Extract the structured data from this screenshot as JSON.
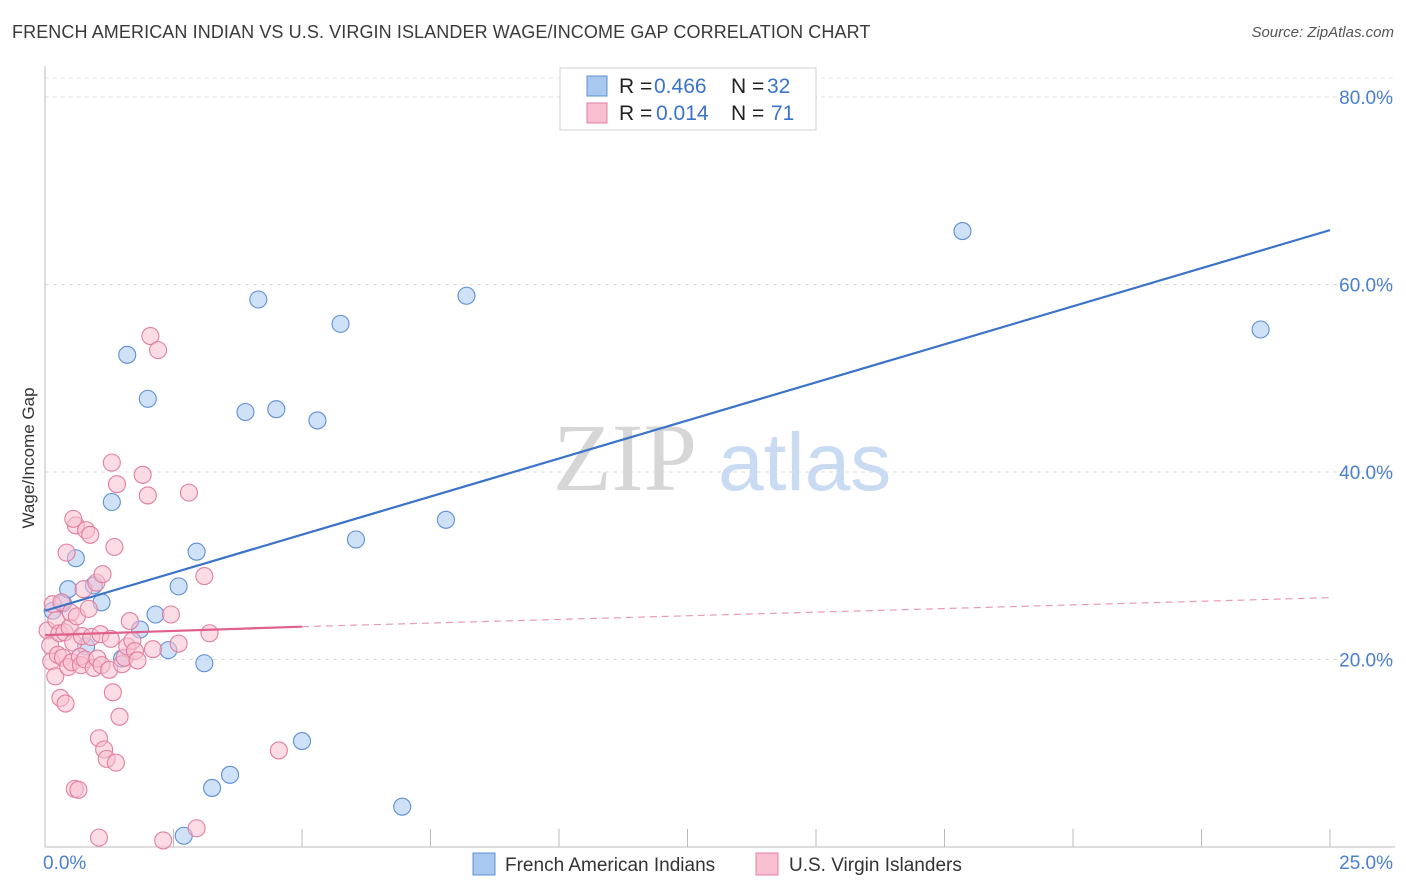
{
  "title": "FRENCH AMERICAN INDIAN VS U.S. VIRGIN ISLANDER WAGE/INCOME GAP CORRELATION CHART",
  "source": "Source: ZipAtlas.com",
  "watermark": {
    "zip": "ZIP",
    "atlas": "atlas"
  },
  "legend": {
    "rows": [
      {
        "r_label": "R = ",
        "r_value": "0.466",
        "n_label": "N = ",
        "n_value": "32",
        "color": "#a8c8f0",
        "stroke": "#5f8fd6"
      },
      {
        "r_label": "R = ",
        "r_value": "0.014",
        "n_label": "N = ",
        "n_value": "71",
        "color": "#f8bfd0",
        "stroke": "#e27fa0"
      }
    ]
  },
  "bottom_legend": [
    {
      "label": "French American Indians",
      "color": "#a8c8f0",
      "stroke": "#5f8fd6"
    },
    {
      "label": "U.S. Virgin Islanders",
      "color": "#f8bfd0",
      "stroke": "#e27fa0"
    }
  ],
  "chart_data": {
    "type": "scatter",
    "title": "FRENCH AMERICAN INDIAN VS U.S. VIRGIN ISLANDER WAGE/INCOME GAP CORRELATION CHART",
    "xlabel": "",
    "ylabel": "Wage/Income Gap",
    "xlim": [
      0,
      25
    ],
    "ylim": [
      0,
      80
    ],
    "x_tick_labels": [
      "0.0%",
      "25.0%"
    ],
    "y_ticks": [
      20,
      40,
      60,
      80
    ],
    "y_tick_labels": [
      "20.0%",
      "40.0%",
      "60.0%",
      "80.0%"
    ],
    "grid": true,
    "series": [
      {
        "name": "French American Indians",
        "color": "#5f8fd6",
        "fill": "#a8c8f0",
        "points": [
          [
            0.15,
            25.2
          ],
          [
            0.35,
            26.0
          ],
          [
            0.45,
            27.5
          ],
          [
            0.6,
            30.8
          ],
          [
            0.8,
            21.4
          ],
          [
            0.95,
            27.9
          ],
          [
            1.1,
            26.1
          ],
          [
            1.3,
            36.8
          ],
          [
            1.5,
            20.1
          ],
          [
            1.6,
            52.5
          ],
          [
            1.85,
            23.2
          ],
          [
            2.0,
            47.8
          ],
          [
            2.15,
            24.8
          ],
          [
            2.4,
            21.0
          ],
          [
            2.6,
            27.8
          ],
          [
            2.7,
            1.2
          ],
          [
            2.95,
            31.5
          ],
          [
            3.1,
            19.6
          ],
          [
            3.25,
            6.3
          ],
          [
            3.6,
            7.7
          ],
          [
            3.9,
            46.4
          ],
          [
            4.15,
            58.4
          ],
          [
            4.5,
            46.7
          ],
          [
            5.0,
            11.3
          ],
          [
            5.3,
            45.5
          ],
          [
            5.75,
            55.8
          ],
          [
            6.05,
            32.8
          ],
          [
            6.95,
            4.3
          ],
          [
            7.8,
            34.9
          ],
          [
            8.2,
            58.8
          ],
          [
            17.85,
            65.7
          ],
          [
            23.65,
            55.2
          ]
        ],
        "trend": {
          "x": [
            0,
            25
          ],
          "y": [
            25.2,
            65.8
          ],
          "style": "solid"
        }
      },
      {
        "name": "U.S. Virgin Islanders",
        "color": "#e27fa0",
        "fill": "#f8bfd0",
        "points": [
          [
            0.05,
            23.1
          ],
          [
            0.1,
            21.5
          ],
          [
            0.12,
            19.8
          ],
          [
            0.15,
            25.9
          ],
          [
            0.2,
            18.2
          ],
          [
            0.22,
            24.2
          ],
          [
            0.25,
            20.5
          ],
          [
            0.28,
            22.8
          ],
          [
            0.3,
            15.9
          ],
          [
            0.32,
            26.1
          ],
          [
            0.35,
            20.2
          ],
          [
            0.38,
            22.9
          ],
          [
            0.4,
            15.3
          ],
          [
            0.42,
            31.4
          ],
          [
            0.45,
            19.2
          ],
          [
            0.48,
            23.4
          ],
          [
            0.5,
            25.0
          ],
          [
            0.52,
            19.7
          ],
          [
            0.55,
            21.8
          ],
          [
            0.58,
            6.2
          ],
          [
            0.6,
            34.3
          ],
          [
            0.62,
            24.6
          ],
          [
            0.65,
            6.1
          ],
          [
            0.68,
            20.3
          ],
          [
            0.7,
            19.4
          ],
          [
            0.72,
            22.5
          ],
          [
            0.75,
            27.5
          ],
          [
            0.78,
            20.0
          ],
          [
            0.8,
            33.8
          ],
          [
            0.85,
            25.4
          ],
          [
            0.88,
            33.3
          ],
          [
            0.9,
            22.4
          ],
          [
            0.95,
            19.1
          ],
          [
            1.0,
            28.2
          ],
          [
            1.02,
            20.1
          ],
          [
            1.05,
            11.6
          ],
          [
            1.08,
            22.7
          ],
          [
            1.1,
            19.4
          ],
          [
            1.12,
            29.1
          ],
          [
            1.15,
            10.4
          ],
          [
            1.2,
            9.4
          ],
          [
            1.25,
            18.9
          ],
          [
            1.28,
            22.2
          ],
          [
            1.3,
            41.0
          ],
          [
            1.32,
            16.5
          ],
          [
            1.35,
            32.0
          ],
          [
            1.38,
            9.0
          ],
          [
            1.4,
            38.7
          ],
          [
            1.45,
            13.9
          ],
          [
            1.5,
            19.5
          ],
          [
            1.55,
            20.2
          ],
          [
            1.6,
            21.4
          ],
          [
            1.65,
            24.1
          ],
          [
            1.7,
            22.0
          ],
          [
            1.75,
            20.9
          ],
          [
            1.8,
            19.9
          ],
          [
            1.9,
            39.7
          ],
          [
            2.0,
            37.5
          ],
          [
            2.05,
            54.5
          ],
          [
            2.1,
            21.1
          ],
          [
            2.2,
            53.0
          ],
          [
            2.3,
            0.7
          ],
          [
            2.45,
            24.8
          ],
          [
            2.6,
            21.7
          ],
          [
            2.8,
            37.8
          ],
          [
            2.95,
            2.0
          ],
          [
            3.1,
            28.9
          ],
          [
            3.2,
            22.8
          ],
          [
            4.55,
            10.3
          ],
          [
            1.05,
            1.0
          ],
          [
            0.55,
            35.0
          ]
        ],
        "trend": {
          "x": [
            0,
            5.0
          ],
          "y": [
            22.6,
            23.5
          ],
          "style": "solid"
        },
        "trend_extension": {
          "x": [
            5.0,
            25
          ],
          "y": [
            23.5,
            26.6
          ],
          "style": "dashed"
        }
      }
    ]
  }
}
